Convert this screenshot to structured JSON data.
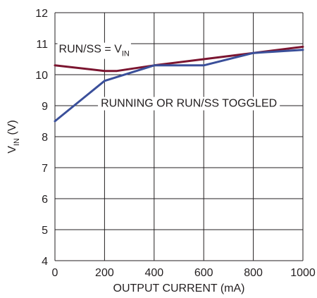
{
  "chart_data": {
    "type": "line",
    "title": "",
    "xlabel": "OUTPUT CURRENT (mA)",
    "ylabel": {
      "main": "V",
      "sub": "IN",
      "suffix": " (V)"
    },
    "xlim": [
      0,
      1000
    ],
    "ylim": [
      4,
      12
    ],
    "xticks": [
      0,
      200,
      400,
      600,
      800,
      1000
    ],
    "yticks": [
      4,
      5,
      6,
      7,
      8,
      9,
      10,
      11,
      12
    ],
    "grid": true,
    "series": [
      {
        "name": "",
        "color": "#7b1530",
        "x": [
          0,
          200,
          250,
          400,
          600,
          800,
          1000
        ],
        "y": [
          10.3,
          10.12,
          10.12,
          10.3,
          10.5,
          10.7,
          10.9
        ]
      },
      {
        "name": "",
        "color": "#3a4f9a",
        "x": [
          0,
          200,
          400,
          600,
          800,
          1000
        ],
        "y": [
          8.5,
          9.8,
          10.3,
          10.3,
          10.7,
          10.8
        ]
      }
    ],
    "annotations": [
      {
        "text": "RUN/SS = V",
        "sub": "IN",
        "x": 10,
        "y": 10.85
      },
      {
        "text": "RUNNING OR RUN/SS TOGGLED",
        "x": 560,
        "y": 9.1
      }
    ]
  },
  "colors": {
    "grid": "#231f20",
    "background": "#ffffff"
  }
}
